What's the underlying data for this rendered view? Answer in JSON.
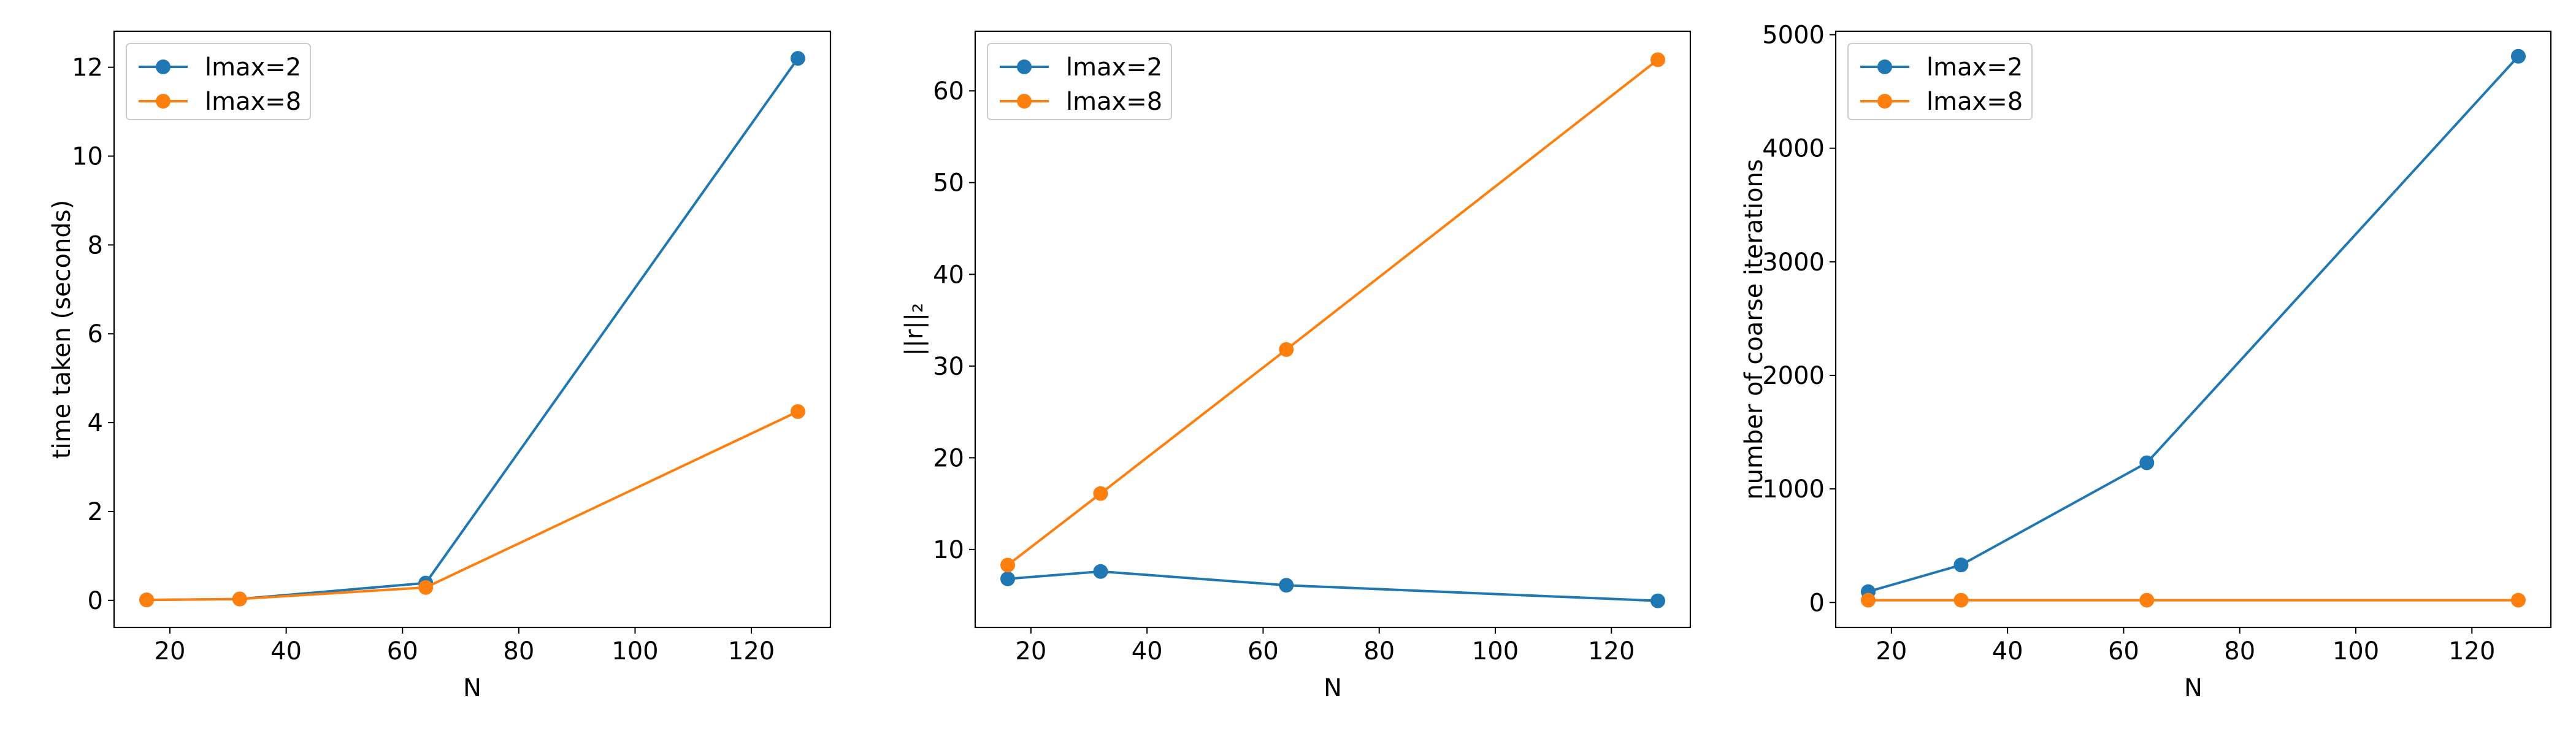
{
  "colors": {
    "series_0": "#1f77b4",
    "series_1": "#ff7f0e",
    "axes": "#000000",
    "background": "#ffffff"
  },
  "chart_data": [
    {
      "type": "line",
      "title": "",
      "xlabel": "N",
      "ylabel": "time taken (seconds)",
      "x": [
        16,
        32,
        64,
        128
      ],
      "xticks": [
        20,
        40,
        60,
        80,
        100,
        120
      ],
      "yticks": [
        0,
        2,
        4,
        6,
        8,
        10,
        12
      ],
      "xlim": [
        10.4,
        133.6
      ],
      "ylim": [
        -0.61,
        12.81
      ],
      "grid": false,
      "legend": "upper left",
      "series": [
        {
          "name": "lmax=2",
          "values": [
            0.01,
            0.03,
            0.39,
            12.2
          ]
        },
        {
          "name": "lmax=8",
          "values": [
            0.01,
            0.03,
            0.29,
            4.25
          ]
        }
      ]
    },
    {
      "type": "line",
      "title": "",
      "xlabel": "N",
      "ylabel": "||r||₂",
      "x": [
        16,
        32,
        64,
        128
      ],
      "xticks": [
        20,
        40,
        60,
        80,
        100,
        120
      ],
      "yticks": [
        10,
        20,
        30,
        40,
        50,
        60
      ],
      "xlim": [
        10.4,
        133.6
      ],
      "ylim": [
        1.5,
        66.5
      ],
      "grid": false,
      "legend": "upper left",
      "series": [
        {
          "name": "lmax=2",
          "values": [
            6.8,
            7.6,
            6.1,
            4.4
          ]
        },
        {
          "name": "lmax=8",
          "values": [
            8.3,
            16.1,
            31.8,
            63.4
          ]
        }
      ]
    },
    {
      "type": "line",
      "title": "",
      "xlabel": "N",
      "ylabel": "number of coarse iterations",
      "x": [
        16,
        32,
        64,
        128
      ],
      "xticks": [
        20,
        40,
        60,
        80,
        100,
        120
      ],
      "yticks": [
        0,
        1000,
        2000,
        3000,
        4000,
        5000
      ],
      "xlim": [
        10.4,
        133.6
      ],
      "ylim": [
        -220,
        5030
      ],
      "grid": false,
      "legend": "upper left",
      "series": [
        {
          "name": "lmax=2",
          "values": [
            95,
            330,
            1230,
            4810
          ]
        },
        {
          "name": "lmax=8",
          "values": [
            20,
            20,
            20,
            20
          ]
        }
      ]
    }
  ]
}
